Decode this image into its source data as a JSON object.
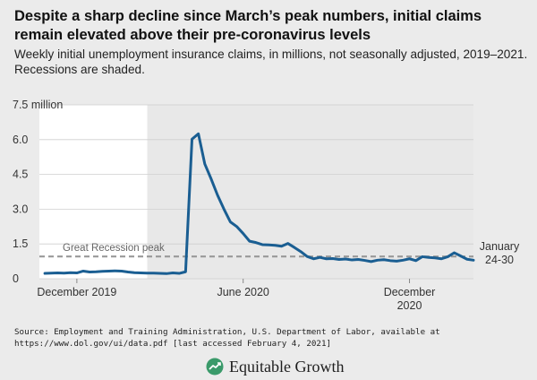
{
  "title": "Despite a sharp decline since March’s peak numbers, initial claims remain elevated above their pre-coronavirus levels",
  "subtitle": "Weekly initial unemployment insurance claims, in millions, not seasonally adjusted, 2019–2021. Recessions are shaded.",
  "source": "Source: Employment and Training Administration, U.S. Department of Labor, available at https://www.dol.gov/ui/data.pdf [last accessed February 4, 2021]",
  "brand": {
    "name": "Equitable Growth",
    "logo_icon": "equitable-growth-logo-icon"
  },
  "colors": {
    "background": "#ebebeb",
    "plot_background": "#ffffff",
    "recession_shade": "#e8e8e8",
    "line": "#1a5e92",
    "reference_line": "#999999",
    "logo": "#3a9a6a"
  },
  "chart_data": {
    "type": "line",
    "title": "Despite a sharp decline since March’s peak numbers, initial claims remain elevated above their pre-coronavirus levels",
    "xlabel": "",
    "ylabel": "",
    "ylim": [
      0,
      7.5
    ],
    "yticks": [
      0,
      1.5,
      3.0,
      4.5,
      6.0,
      7.5
    ],
    "ytick_labels": [
      "0",
      "1.5",
      "3.0",
      "4.5",
      "6.0",
      "7.5 million"
    ],
    "grid": true,
    "xtick_labels": [
      {
        "label": "December 2019",
        "x": "2019-12-07"
      },
      {
        "label": "June 2020",
        "x": "2020-06-06"
      },
      {
        "label": "December\n2020",
        "x": "2020-12-05"
      }
    ],
    "recession": {
      "start": "2020-02-22",
      "end": "2021-01-30"
    },
    "reference_line": {
      "label": "Great Recession peak",
      "value": 0.96
    },
    "end_label": "January\n24-30",
    "series": [
      {
        "name": "",
        "points": [
          [
            "2019-11-02",
            0.23
          ],
          [
            "2019-11-09",
            0.24
          ],
          [
            "2019-11-16",
            0.25
          ],
          [
            "2019-11-23",
            0.24
          ],
          [
            "2019-11-30",
            0.26
          ],
          [
            "2019-12-07",
            0.25
          ],
          [
            "2019-12-14",
            0.33
          ],
          [
            "2019-12-21",
            0.29
          ],
          [
            "2019-12-28",
            0.3
          ],
          [
            "2020-01-04",
            0.32
          ],
          [
            "2020-01-11",
            0.33
          ],
          [
            "2020-01-18",
            0.34
          ],
          [
            "2020-01-25",
            0.33
          ],
          [
            "2020-02-01",
            0.29
          ],
          [
            "2020-02-08",
            0.26
          ],
          [
            "2020-02-15",
            0.25
          ],
          [
            "2020-02-22",
            0.24
          ],
          [
            "2020-02-29",
            0.24
          ],
          [
            "2020-03-07",
            0.23
          ],
          [
            "2020-03-14",
            0.22
          ],
          [
            "2020-03-21",
            0.25
          ],
          [
            "2020-03-28",
            0.23
          ],
          [
            "2020-04-04",
            0.3
          ],
          [
            "2020-04-11",
            6.02
          ],
          [
            "2020-04-18",
            6.25
          ],
          [
            "2020-04-25",
            4.95
          ],
          [
            "2020-05-02",
            4.3
          ],
          [
            "2020-05-09",
            3.6
          ],
          [
            "2020-05-16",
            3.0
          ],
          [
            "2020-05-23",
            2.45
          ],
          [
            "2020-05-30",
            2.25
          ],
          [
            "2020-06-06",
            1.95
          ],
          [
            "2020-06-13",
            1.62
          ],
          [
            "2020-06-20",
            1.56
          ],
          [
            "2020-06-27",
            1.47
          ],
          [
            "2020-07-04",
            1.46
          ],
          [
            "2020-07-11",
            1.44
          ],
          [
            "2020-07-18",
            1.4
          ],
          [
            "2020-07-25",
            1.52
          ],
          [
            "2020-08-01",
            1.35
          ],
          [
            "2020-08-08",
            1.17
          ],
          [
            "2020-08-15",
            0.96
          ],
          [
            "2020-08-22",
            0.86
          ],
          [
            "2020-08-29",
            0.92
          ],
          [
            "2020-09-05",
            0.86
          ],
          [
            "2020-09-12",
            0.87
          ],
          [
            "2020-09-19",
            0.83
          ],
          [
            "2020-09-26",
            0.85
          ],
          [
            "2020-10-03",
            0.81
          ],
          [
            "2020-10-10",
            0.83
          ],
          [
            "2020-10-17",
            0.79
          ],
          [
            "2020-10-24",
            0.74
          ],
          [
            "2020-10-31",
            0.8
          ],
          [
            "2020-11-07",
            0.82
          ],
          [
            "2020-11-14",
            0.78
          ],
          [
            "2020-11-21",
            0.76
          ],
          [
            "2020-11-28",
            0.8
          ],
          [
            "2020-12-05",
            0.86
          ],
          [
            "2020-12-12",
            0.78
          ],
          [
            "2020-12-19",
            0.95
          ],
          [
            "2020-12-26",
            0.92
          ],
          [
            "2021-01-02",
            0.9
          ],
          [
            "2021-01-09",
            0.86
          ],
          [
            "2021-01-16",
            0.95
          ],
          [
            "2021-01-23",
            1.12
          ],
          [
            "2021-01-30",
            0.98
          ],
          [
            "2021-02-06",
            0.84
          ],
          [
            "2021-02-13",
            0.8
          ]
        ]
      }
    ]
  }
}
